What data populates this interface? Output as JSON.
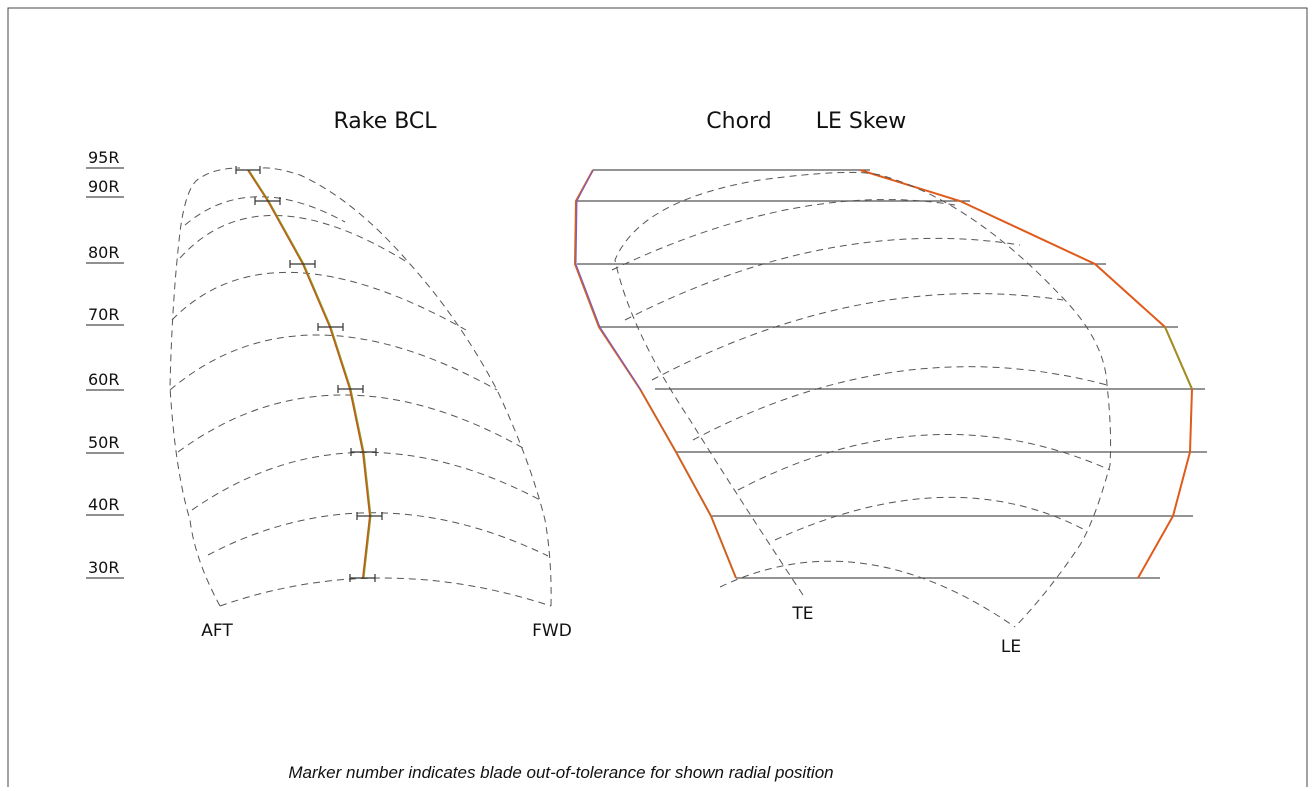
{
  "left_diagram": {
    "title": "Rake BCL",
    "aft_label": "AFT",
    "fwd_label": "FWD"
  },
  "right_diagram": {
    "title_chord": "Chord",
    "title_skew": "LE Skew",
    "te_label": "TE",
    "le_label": "LE"
  },
  "radial_labels": [
    "95R",
    "90R",
    "80R",
    "70R",
    "60R",
    "50R",
    "40R",
    "30R"
  ],
  "footer_note": "Marker number indicates blade out-of-tolerance for shown radial position"
}
